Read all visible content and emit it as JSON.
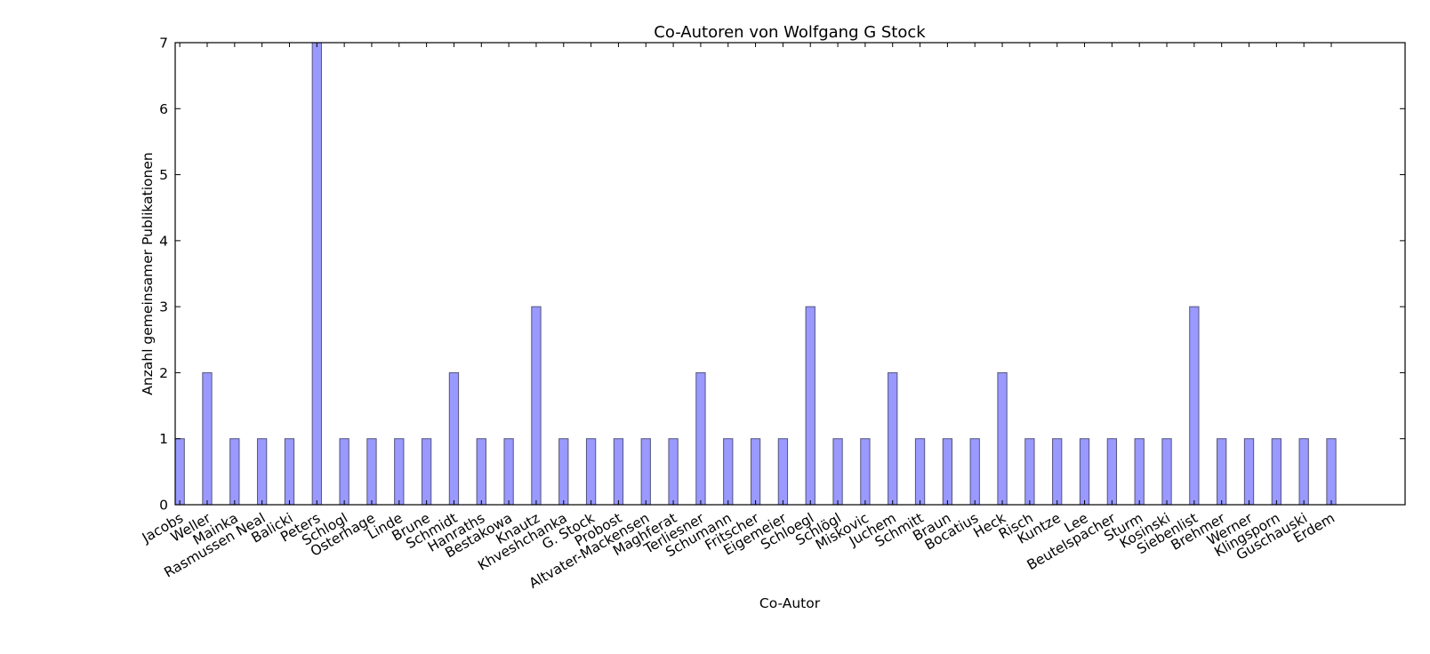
{
  "chart_data": {
    "type": "bar",
    "title": "Co-Autoren von Wolfgang G Stock",
    "xlabel": "Co-Autor",
    "ylabel": "Anzahl gemeinsamer Publikationen",
    "ylim": [
      0,
      7
    ],
    "yticks": [
      "0",
      "1",
      "2",
      "3",
      "4",
      "5",
      "6",
      "7"
    ],
    "grid": false,
    "bar_color": "#9999ff",
    "bar_edge_color": "#55557a",
    "categories": [
      "Jacobs",
      "Weller",
      "Mainka",
      "Rasmussen Neal",
      "Balicki",
      "Peters",
      "Schlogl",
      "Osterhage",
      "Linde",
      "Brune",
      "Schmidt",
      "Hanraths",
      "Bestakowa",
      "Knautz",
      "Khveshchanka",
      "G. Stock",
      "Probost",
      "Altvater-Mackensen",
      "Maghferat",
      "Terliesner",
      "Schumann",
      "Fritscher",
      "Eigemeier",
      "Schloegl",
      "Schlögl",
      "Miskovic",
      "Juchem",
      "Schmitt",
      "Braun",
      "Bocatius",
      "Heck",
      "Risch",
      "Kuntze",
      "Lee",
      "Beutelspacher",
      "Sturm",
      "Kosinski",
      "Siebenlist",
      "Brehmer",
      "Werner",
      "Klingsporn",
      "Guschauski",
      "Erdem"
    ],
    "values": [
      1,
      2,
      1,
      1,
      1,
      7,
      1,
      1,
      1,
      1,
      2,
      1,
      1,
      3,
      1,
      1,
      1,
      1,
      1,
      2,
      1,
      1,
      1,
      3,
      1,
      1,
      2,
      1,
      1,
      1,
      2,
      1,
      1,
      1,
      1,
      1,
      1,
      3,
      1,
      1,
      1,
      1,
      1
    ]
  }
}
